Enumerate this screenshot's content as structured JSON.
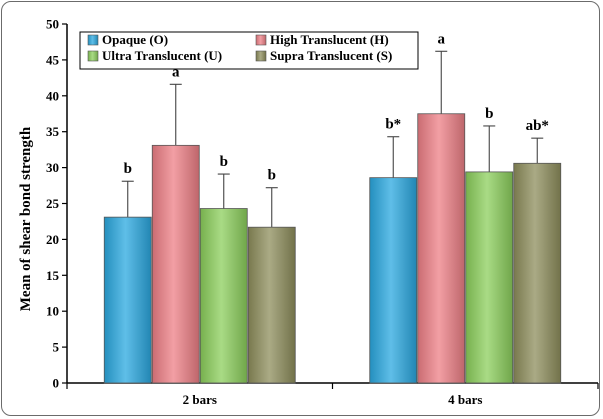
{
  "chart_data": {
    "type": "bar",
    "title": "",
    "xlabel": "",
    "ylabel": "Mean of shear bond strength",
    "ylim": [
      0,
      50
    ],
    "yticks": [
      0,
      5,
      10,
      15,
      20,
      25,
      30,
      35,
      40,
      45,
      50
    ],
    "categories": [
      "2 bars",
      "4 bars"
    ],
    "legend_position": "top-left",
    "grid": false,
    "series": [
      {
        "name": "Opaque (O)",
        "color": "#2aa8e0",
        "values": [
          23.1,
          28.6
        ],
        "errors": [
          5.0,
          5.7
        ],
        "labels": [
          "b",
          "b*"
        ]
      },
      {
        "name": "High Translucent (H)",
        "color": "#ee7f86",
        "values": [
          33.1,
          37.5
        ],
        "errors": [
          8.5,
          8.7
        ],
        "labels": [
          "a",
          "a"
        ]
      },
      {
        "name": "Ultra Translucent (U)",
        "color": "#8ccf5c",
        "values": [
          24.3,
          29.4
        ],
        "errors": [
          4.8,
          6.4
        ],
        "labels": [
          "b",
          "b"
        ]
      },
      {
        "name": "Supra Translucent (S)",
        "color": "#8e8e5c",
        "values": [
          21.7,
          30.6
        ],
        "errors": [
          5.5,
          3.5
        ],
        "labels": [
          "b",
          "ab*"
        ]
      }
    ]
  }
}
